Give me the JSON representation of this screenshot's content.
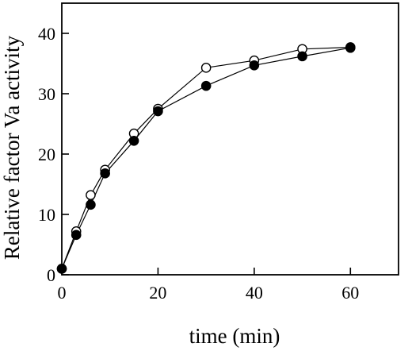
{
  "chart_data": {
    "type": "line",
    "xlabel": "time (min)",
    "ylabel": "Relative factor Va activity",
    "xlim": [
      0,
      70
    ],
    "ylim": [
      0,
      45
    ],
    "x_ticks": [
      0,
      20,
      40,
      60
    ],
    "y_ticks": [
      0,
      10,
      20,
      30,
      40
    ],
    "grid": false,
    "series": [
      {
        "marker": "open-circle",
        "color": "#000000",
        "x": [
          0,
          3,
          6,
          9,
          15,
          20,
          30,
          40,
          50,
          60
        ],
        "y": [
          1.0,
          7.2,
          13.2,
          17.4,
          23.4,
          27.5,
          34.3,
          35.5,
          37.4,
          37.7
        ]
      },
      {
        "marker": "filled-circle",
        "color": "#000000",
        "x": [
          0,
          3,
          6,
          9,
          15,
          20,
          30,
          40,
          50,
          60
        ],
        "y": [
          1.0,
          6.6,
          11.6,
          16.8,
          22.2,
          27.1,
          31.3,
          34.7,
          36.2,
          37.6
        ]
      }
    ]
  }
}
